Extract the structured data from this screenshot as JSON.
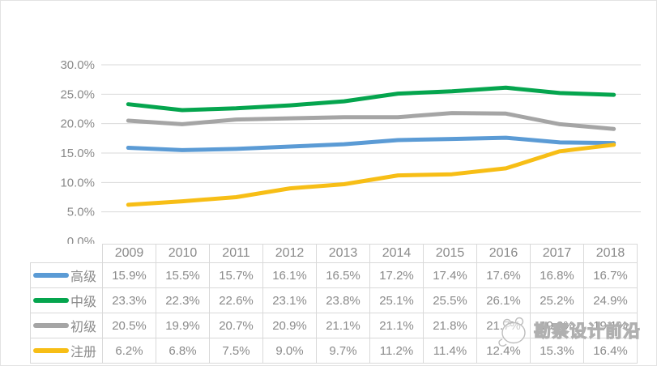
{
  "watermark": {
    "text": "勘察设计前沿",
    "logo": "mascot-outline-icon"
  },
  "colors": {
    "grid": "#d9d9d9",
    "axis_text": "#8a8a8a",
    "table_border": "#d9d9d9",
    "table_text": "#8a8a8a",
    "series_senior": "#5B9BD5",
    "series_intermediate": "#05A54E",
    "series_junior": "#A5A5A5",
    "series_registered": "#F7BE16"
  },
  "chart_data": {
    "type": "line",
    "title": "",
    "xlabel": "",
    "ylabel": "",
    "grid": true,
    "legend_position": "data-table-left",
    "x": [
      "2009",
      "2010",
      "2011",
      "2012",
      "2013",
      "2014",
      "2015",
      "2016",
      "2017",
      "2018"
    ],
    "ylim": [
      0,
      30
    ],
    "yticks": [
      30,
      25,
      20,
      15,
      10,
      5,
      0
    ],
    "ytick_labels": [
      "30.0%",
      "25.0%",
      "20.0%",
      "15.0%",
      "10.0%",
      "5.0%",
      "0.0%"
    ],
    "value_suffix": "%",
    "series": [
      {
        "name": "高级",
        "semantic": "senior",
        "color": "#5B9BD5",
        "values": [
          15.9,
          15.5,
          15.7,
          16.1,
          16.5,
          17.2,
          17.4,
          17.6,
          16.8,
          16.7
        ]
      },
      {
        "name": "中级",
        "semantic": "intermediate",
        "color": "#05A54E",
        "values": [
          23.3,
          22.3,
          22.6,
          23.1,
          23.8,
          25.1,
          25.5,
          26.1,
          25.2,
          24.9
        ]
      },
      {
        "name": "初级",
        "semantic": "junior",
        "color": "#A5A5A5",
        "values": [
          20.5,
          19.9,
          20.7,
          20.9,
          21.1,
          21.1,
          21.8,
          21.7,
          19.9,
          19.1
        ]
      },
      {
        "name": "注册",
        "semantic": "registered",
        "color": "#F7BE16",
        "values": [
          6.2,
          6.8,
          7.5,
          9.0,
          9.7,
          11.2,
          11.4,
          12.4,
          15.3,
          16.4
        ]
      }
    ]
  }
}
